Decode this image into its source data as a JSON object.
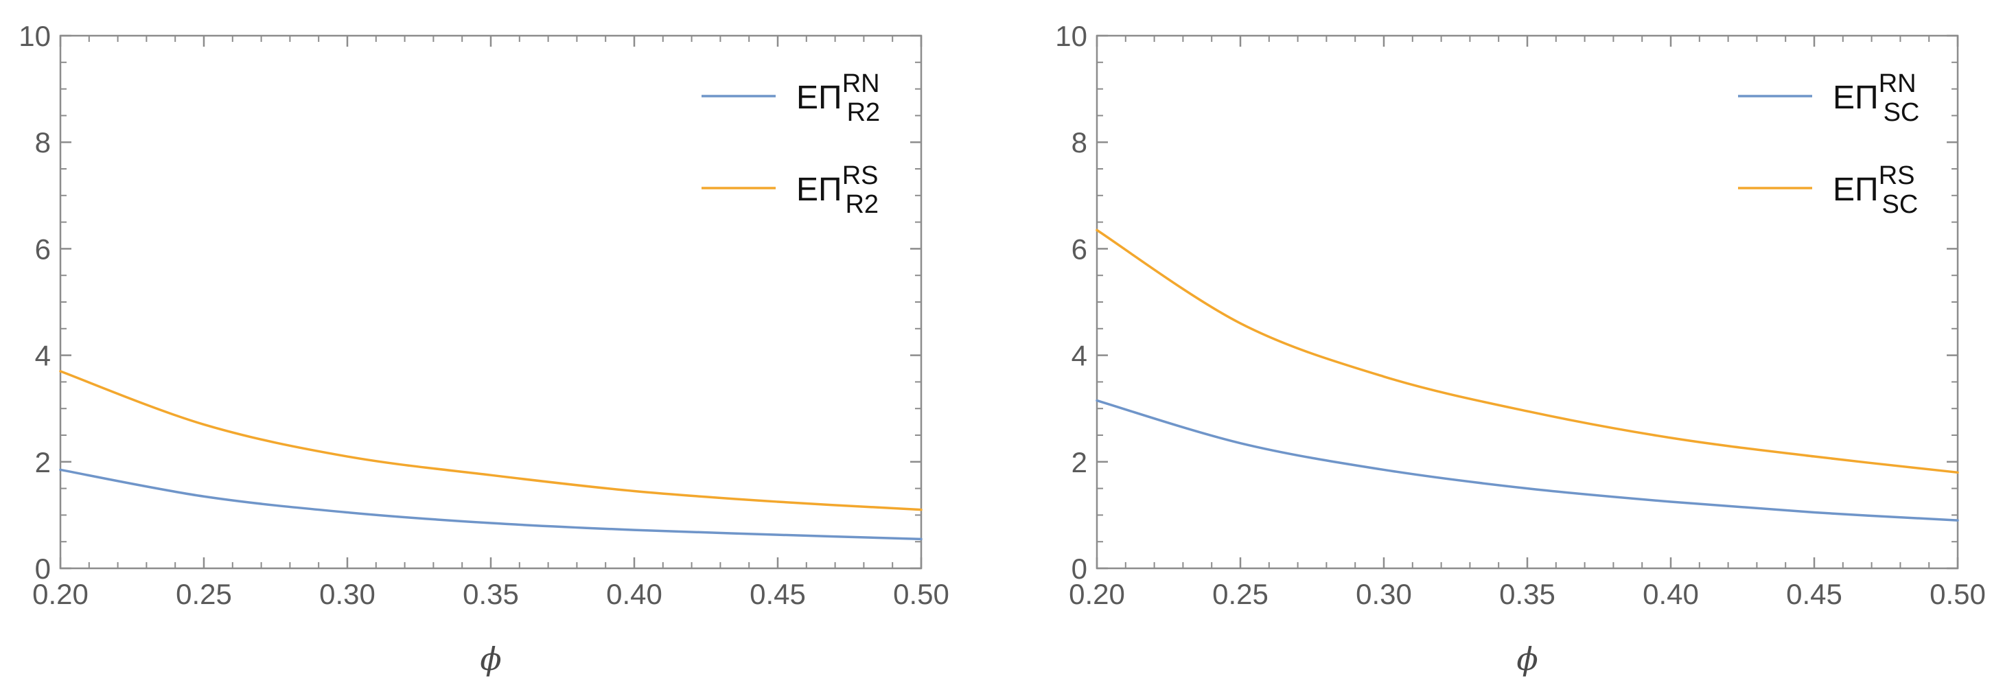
{
  "chart_data": [
    {
      "type": "line",
      "title": "",
      "xlabel": "ϕ",
      "ylabel": "",
      "xlim": [
        0.2,
        0.5
      ],
      "ylim": [
        0,
        10
      ],
      "x_ticks": [
        "0.20",
        "0.25",
        "0.30",
        "0.35",
        "0.40",
        "0.45",
        "0.50"
      ],
      "y_ticks": [
        "0",
        "2",
        "4",
        "6",
        "8",
        "10"
      ],
      "legend_position": "top-right",
      "x": [
        0.2,
        0.25,
        0.3,
        0.35,
        0.4,
        0.45,
        0.5
      ],
      "series": [
        {
          "name": "EΠ_R2^RN",
          "legend_base": "EΠ",
          "legend_sub": "R2",
          "legend_sup": "RN",
          "color": "#6f95c9",
          "values": [
            1.85,
            1.35,
            1.05,
            0.85,
            0.72,
            0.63,
            0.55
          ]
        },
        {
          "name": "EΠ_R2^RS",
          "legend_base": "EΠ",
          "legend_sub": "R2",
          "legend_sup": "RS",
          "color": "#f3a72d",
          "values": [
            3.7,
            2.7,
            2.1,
            1.75,
            1.45,
            1.25,
            1.1
          ]
        }
      ]
    },
    {
      "type": "line",
      "title": "",
      "xlabel": "ϕ",
      "ylabel": "",
      "xlim": [
        0.2,
        0.5
      ],
      "ylim": [
        0,
        10
      ],
      "x_ticks": [
        "0.20",
        "0.25",
        "0.30",
        "0.35",
        "0.40",
        "0.45",
        "0.50"
      ],
      "y_ticks": [
        "0",
        "2",
        "4",
        "6",
        "8",
        "10"
      ],
      "legend_position": "top-right",
      "x": [
        0.2,
        0.25,
        0.3,
        0.35,
        0.4,
        0.45,
        0.5
      ],
      "series": [
        {
          "name": "EΠ_SC^RN",
          "legend_base": "EΠ",
          "legend_sub": "SC",
          "legend_sup": "RN",
          "color": "#6f95c9",
          "values": [
            3.15,
            2.35,
            1.85,
            1.5,
            1.25,
            1.05,
            0.9
          ]
        },
        {
          "name": "EΠ_SC^RS",
          "legend_base": "EΠ",
          "legend_sub": "SC",
          "legend_sup": "RS",
          "color": "#f3a72d",
          "values": [
            6.35,
            4.6,
            3.6,
            2.95,
            2.45,
            2.1,
            1.8
          ]
        }
      ]
    }
  ]
}
